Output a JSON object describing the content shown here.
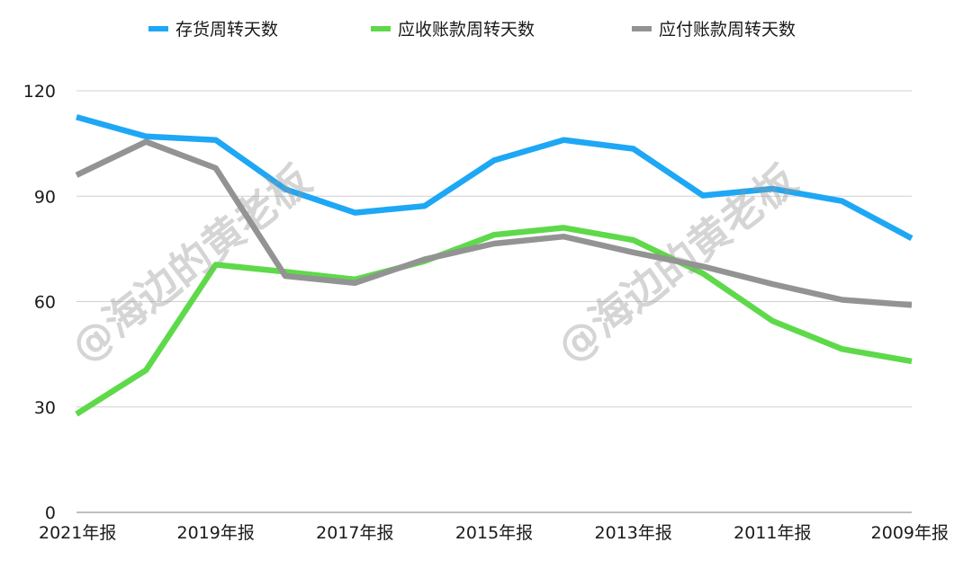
{
  "chart_data": {
    "type": "line",
    "title": "",
    "xlabel": "",
    "ylabel": "",
    "ylim": [
      0,
      120
    ],
    "yticks": [
      0,
      30,
      60,
      90,
      120
    ],
    "grid": true,
    "legend_position": "top-center",
    "x": [
      "2021年报",
      "2020年报",
      "2019年报",
      "2018年报",
      "2017年报",
      "2016年报",
      "2015年报",
      "2014年报",
      "2013年报",
      "2012年报",
      "2011年报",
      "2010年报",
      "2009年报"
    ],
    "x_tick_labels": [
      "2021年报",
      "",
      "2019年报",
      "",
      "2017年报",
      "",
      "2015年报",
      "",
      "2013年报",
      "",
      "2011年报",
      "",
      "2009年报"
    ],
    "series": [
      {
        "name": "存货周转天数",
        "color": "#1ea7f5",
        "values": [
          112.5,
          107,
          106,
          92,
          85.3,
          87.2,
          100.2,
          106,
          103.5,
          90.2,
          92.1,
          88.6,
          78
        ]
      },
      {
        "name": "应收账款周转天数",
        "color": "#5ed94a",
        "values": [
          28,
          40.5,
          70.5,
          68.5,
          66.3,
          71.5,
          79,
          81,
          77.5,
          68,
          54.5,
          46.5,
          43
        ]
      },
      {
        "name": "应付账款周转天数",
        "color": "#939393",
        "values": [
          96,
          105.5,
          98,
          67.3,
          65.3,
          72,
          76.5,
          78.5,
          74,
          70,
          65,
          60.5,
          59
        ]
      }
    ],
    "watermark": [
      "@海边的黄老板",
      "@海边的黄老板"
    ]
  }
}
